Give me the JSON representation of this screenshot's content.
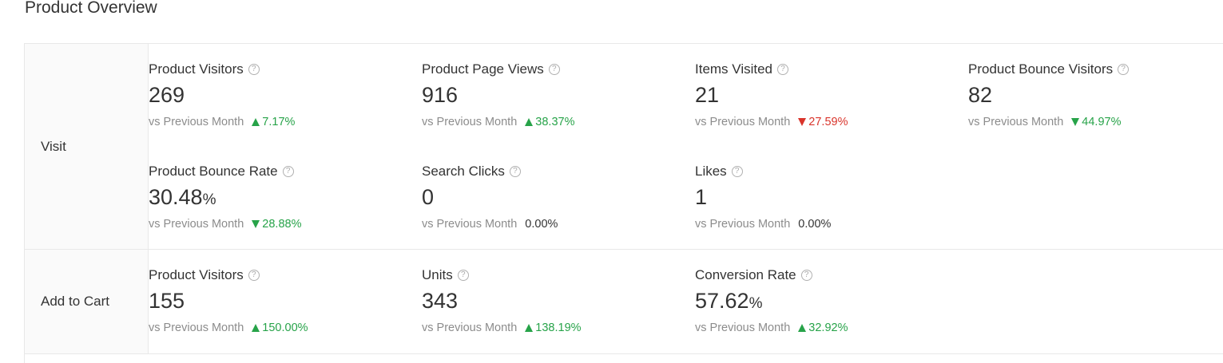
{
  "title": "Product Overview",
  "colors": {
    "increase": "#27a349",
    "decrease": "#d9342b",
    "muted": "#8c8c8c"
  },
  "sections": {
    "visit": {
      "label": "Visit",
      "metrics": [
        {
          "label": "Product Visitors",
          "value": "269",
          "unit": "",
          "compare_label": "vs Previous Month",
          "change": "7.17%",
          "trend": "up"
        },
        {
          "label": "Product Page Views",
          "value": "916",
          "unit": "",
          "compare_label": "vs Previous Month",
          "change": "38.37%",
          "trend": "up"
        },
        {
          "label": "Items Visited",
          "value": "21",
          "unit": "",
          "compare_label": "vs Previous Month",
          "change": "27.59%",
          "trend": "down-bad"
        },
        {
          "label": "Product Bounce Visitors",
          "value": "82",
          "unit": "",
          "compare_label": "vs Previous Month",
          "change": "44.97%",
          "trend": "down-good"
        },
        {
          "label": "Product Bounce Rate",
          "value": "30.48",
          "unit": "%",
          "compare_label": "vs Previous Month",
          "change": "28.88%",
          "trend": "down-good"
        },
        {
          "label": "Search Clicks",
          "value": "0",
          "unit": "",
          "compare_label": "vs Previous Month",
          "change": "0.00%",
          "trend": "flat"
        },
        {
          "label": "Likes",
          "value": "1",
          "unit": "",
          "compare_label": "vs Previous Month",
          "change": "0.00%",
          "trend": "flat"
        }
      ]
    },
    "cart": {
      "label": "Add to Cart",
      "metrics": [
        {
          "label": "Product Visitors",
          "value": "155",
          "unit": "",
          "compare_label": "vs Previous Month",
          "change": "150.00%",
          "trend": "up"
        },
        {
          "label": "Units",
          "value": "343",
          "unit": "",
          "compare_label": "vs Previous Month",
          "change": "138.19%",
          "trend": "up"
        },
        {
          "label": "Conversion Rate",
          "value": "57.62",
          "unit": "%",
          "compare_label": "vs Previous Month",
          "change": "32.92%",
          "trend": "up"
        }
      ]
    }
  }
}
